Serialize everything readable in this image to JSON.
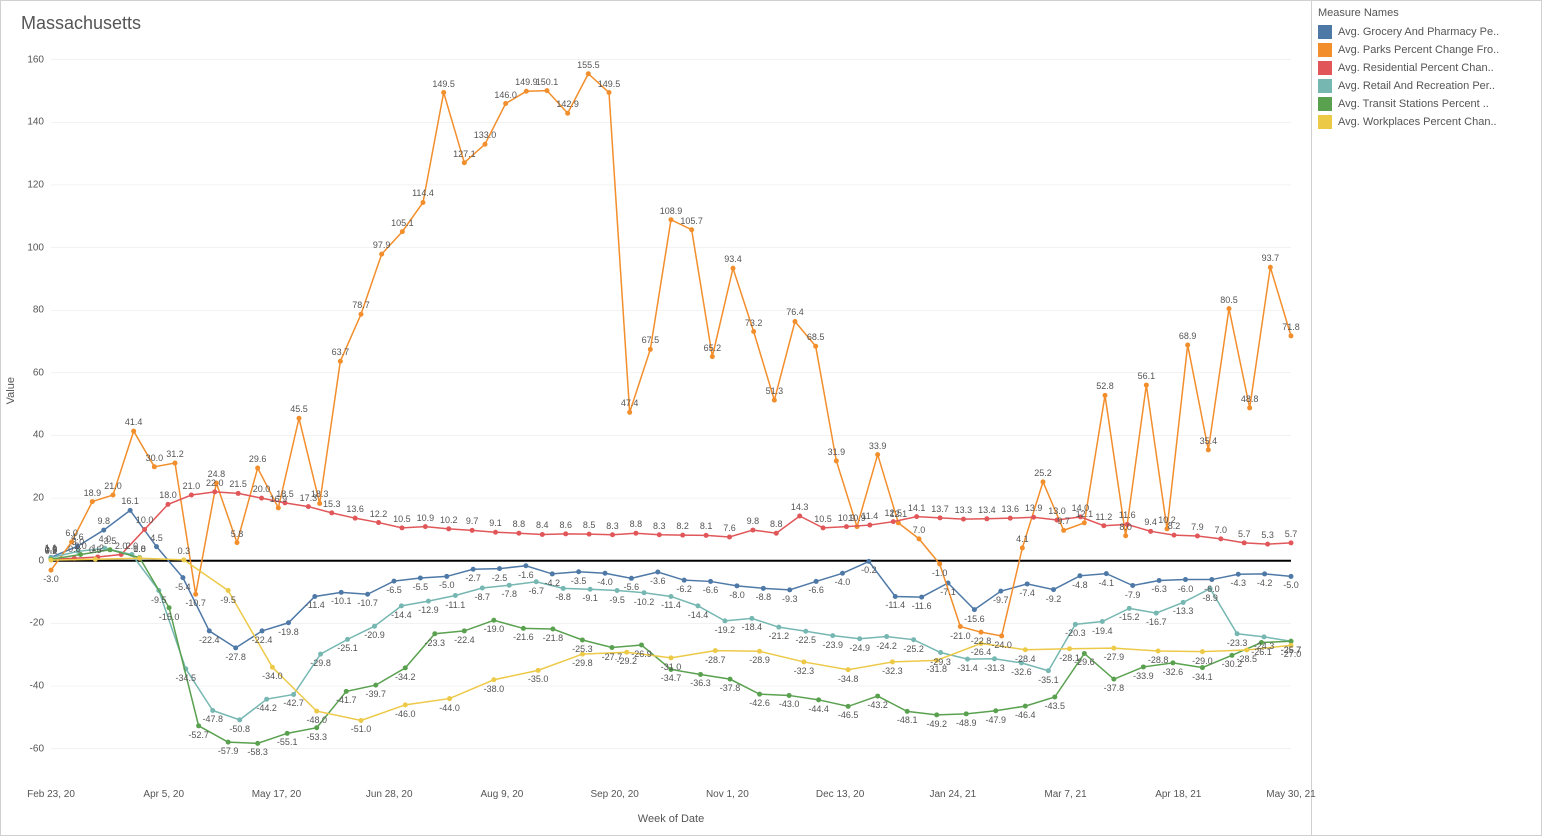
{
  "title": "Massachusetts",
  "y_axis_label": "Value",
  "x_axis_label": "Week of Date",
  "legend_title": "Measure Names",
  "chart": {
    "type": "line",
    "ylim": [
      -70,
      165
    ],
    "yticks": [
      -60,
      -40,
      -20,
      0,
      20,
      40,
      60,
      80,
      100,
      120,
      140,
      160
    ],
    "grid_color": "#e6e6e6",
    "zero_line_color": "#000000",
    "zero_line_width": 2,
    "background_color": "#ffffff",
    "label_fontsize": 9,
    "axis_fontsize": 10,
    "title_fontsize": 18,
    "line_width": 1.5,
    "marker_size": 2.5,
    "x_labels": [
      "Feb 23, 20",
      "Apr 5, 20",
      "May 17, 20",
      "Jun 28, 20",
      "Aug 9, 20",
      "Sep 20, 20",
      "Nov 1, 20",
      "Dec 13, 20",
      "Jan 24, 21",
      "Mar 7, 21",
      "Apr 18, 21",
      "May 30, 21"
    ],
    "n_points": 68,
    "series": [
      {
        "name": "Avg. Grocery And Pharmacy Pe..",
        "color": "#4e79a7",
        "values": [
          1.1,
          4.6,
          9.8,
          16.1,
          4.5,
          -5.4,
          -22.4,
          -27.8,
          -22.4,
          -19.8,
          -11.4,
          -10.1,
          -10.7,
          -6.5,
          -5.5,
          -5.0,
          -2.7,
          -2.5,
          -1.6,
          -4.2,
          -3.5,
          -4.0,
          -5.6,
          -3.6,
          -6.2,
          -6.6,
          -8.0,
          -8.8,
          -9.3,
          -6.6,
          -4.0,
          -0.2,
          -11.4,
          -11.6,
          -7.1,
          -15.6,
          -9.7,
          -7.4,
          -9.2,
          -4.8,
          -4.1,
          -7.9,
          -6.3,
          -6.0,
          -6.0,
          -4.3,
          -4.2,
          -5.0
        ]
      },
      {
        "name": "Avg. Parks Percent Change Fro..",
        "color": "#f28e2b",
        "values": [
          -3.0,
          6.0,
          18.9,
          21.0,
          41.4,
          30.0,
          31.2,
          -10.7,
          24.8,
          5.8,
          29.6,
          16.9,
          45.5,
          18.3,
          63.7,
          78.7,
          97.9,
          105.1,
          114.4,
          149.5,
          127.1,
          133.0,
          146.0,
          149.9,
          150.1,
          142.9,
          155.5,
          149.5,
          47.4,
          67.5,
          108.9,
          105.7,
          65.2,
          93.4,
          73.2,
          51.3,
          76.4,
          68.5,
          31.9,
          10.9,
          33.9,
          12.1,
          7.0,
          -1.0,
          -21.0,
          -22.8,
          -24.0,
          4.1,
          25.2,
          9.7,
          12.1,
          52.8,
          8.0,
          56.1,
          10.2,
          68.9,
          35.4,
          80.5,
          48.8,
          93.7,
          71.8
        ]
      },
      {
        "name": "Avg. Residential Percent Chan..",
        "color": "#e15759",
        "values": [
          0.5,
          0.8,
          1.2,
          2.0,
          10.0,
          18.0,
          21.0,
          22.0,
          21.5,
          20.0,
          18.5,
          17.3,
          15.3,
          13.6,
          12.2,
          10.5,
          10.9,
          10.2,
          9.7,
          9.1,
          8.8,
          8.4,
          8.6,
          8.5,
          8.3,
          8.8,
          8.3,
          8.2,
          8.1,
          7.6,
          9.8,
          8.8,
          14.3,
          10.5,
          10.9,
          11.4,
          12.5,
          14.1,
          13.7,
          13.3,
          13.4,
          13.6,
          13.9,
          13.0,
          14.0,
          11.2,
          11.6,
          9.4,
          8.2,
          7.9,
          7.0,
          5.7,
          5.3,
          5.7
        ]
      },
      {
        "name": "Avg. Retail And Recreation Per..",
        "color": "#76b7b2",
        "values": [
          1.0,
          3.0,
          4.0,
          2.0,
          -9.5,
          -34.5,
          -47.8,
          -50.8,
          -44.2,
          -42.7,
          -29.8,
          -25.1,
          -20.9,
          -14.4,
          -12.9,
          -11.1,
          -8.7,
          -7.8,
          -6.7,
          -8.8,
          -9.1,
          -9.5,
          -10.2,
          -11.4,
          -14.4,
          -19.2,
          -18.4,
          -21.2,
          -22.5,
          -23.9,
          -24.9,
          -24.2,
          -25.2,
          -29.3,
          -31.4,
          -31.3,
          -32.6,
          -35.1,
          -20.3,
          -19.4,
          -15.2,
          -16.7,
          -13.3,
          -8.9,
          -23.3,
          -24.3,
          -25.7
        ]
      },
      {
        "name": "Avg. Transit Stations Percent ..",
        "color": "#59a14f",
        "values": [
          0.5,
          2.0,
          3.5,
          1.0,
          -15.0,
          -52.7,
          -57.9,
          -58.3,
          -55.1,
          -53.3,
          -41.7,
          -39.7,
          -34.2,
          -23.3,
          -22.4,
          -19.0,
          -21.6,
          -21.8,
          -25.3,
          -27.7,
          -26.9,
          -34.7,
          -36.3,
          -37.8,
          -42.6,
          -43.0,
          -44.4,
          -46.5,
          -43.2,
          -48.1,
          -49.2,
          -48.9,
          -47.9,
          -46.4,
          -43.5,
          -29.6,
          -37.8,
          -33.9,
          -32.6,
          -34.1,
          -30.2,
          -26.1,
          -25.7
        ]
      },
      {
        "name": "Avg. Workplaces Percent Chan..",
        "color": "#edc948",
        "values": [
          0.2,
          0.5,
          0.8,
          0.3,
          -9.5,
          -34.0,
          -48.0,
          -51.0,
          -46.0,
          -44.0,
          -38.0,
          -35.0,
          -29.8,
          -29.2,
          -31.0,
          -28.7,
          -28.9,
          -32.3,
          -34.8,
          -32.3,
          -31.8,
          -26.4,
          -28.4,
          -28.1,
          -27.9,
          -28.8,
          -29.0,
          -28.5,
          -27.0
        ]
      }
    ]
  }
}
